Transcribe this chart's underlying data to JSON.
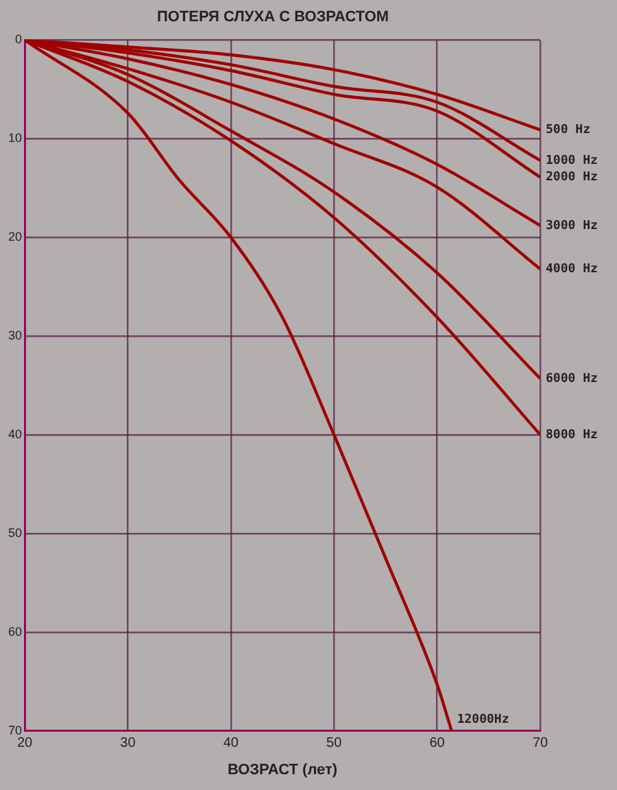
{
  "chart_data": {
    "type": "line",
    "title": "ПОТЕРЯ СЛУХА С ВОЗРАСТОМ",
    "xlabel": "ВОЗРАСТ (лет)",
    "xlim": [
      20,
      70
    ],
    "xticks": [
      20,
      30,
      40,
      50,
      60,
      70
    ],
    "ylim": [
      70,
      0
    ],
    "yticks": [
      0,
      10,
      20,
      30,
      40,
      50,
      60,
      70
    ],
    "grid": true,
    "legend": false,
    "marker": "none",
    "line_style": "solid",
    "series": [
      {
        "name": "500 Hz",
        "color": "#a00000",
        "x": [
          20,
          30,
          40,
          50,
          60,
          70
        ],
        "values": [
          0,
          0.7,
          1.5,
          3.0,
          5.5,
          9.1
        ]
      },
      {
        "name": "1000 Hz",
        "color": "#a00000",
        "x": [
          20,
          30,
          40,
          50,
          60,
          70
        ],
        "values": [
          0,
          1.0,
          2.5,
          4.7,
          6.3,
          12.2
        ]
      },
      {
        "name": "2000 Hz",
        "color": "#a00000",
        "x": [
          20,
          30,
          40,
          50,
          60,
          70
        ],
        "values": [
          0,
          1.3,
          3.1,
          5.5,
          7.2,
          13.9
        ]
      },
      {
        "name": "3000 Hz",
        "color": "#a00000",
        "x": [
          20,
          30,
          40,
          50,
          60,
          70
        ],
        "values": [
          0,
          1.9,
          4.5,
          8.0,
          12.6,
          18.8
        ]
      },
      {
        "name": "4000 Hz",
        "color": "#a00000",
        "x": [
          20,
          30,
          40,
          50,
          60,
          70
        ],
        "values": [
          0,
          2.9,
          6.3,
          10.5,
          14.9,
          23.2
        ]
      },
      {
        "name": "6000 Hz",
        "color": "#a00000",
        "x": [
          20,
          30,
          40,
          50,
          60,
          70
        ],
        "values": [
          0,
          3.5,
          9.2,
          15.4,
          23.6,
          34.3
        ]
      },
      {
        "name": "8000 Hz",
        "color": "#a00000",
        "x": [
          20,
          30,
          40,
          50,
          60,
          70
        ],
        "values": [
          0,
          4.2,
          10.2,
          18.0,
          28.1,
          40
        ]
      },
      {
        "name": "12000Hz",
        "color": "#a00000",
        "x": [
          20,
          30,
          35,
          40,
          45,
          50,
          55,
          60,
          61.4
        ],
        "values": [
          0,
          7.4,
          14.2,
          20,
          28.1,
          40,
          52.5,
          65.3,
          70
        ]
      }
    ]
  }
}
